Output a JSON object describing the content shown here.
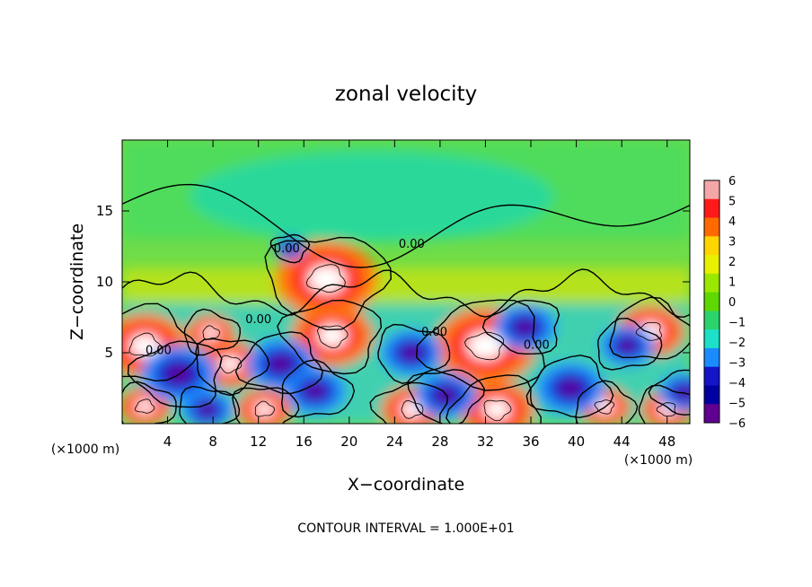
{
  "chart_data": {
    "type": "heatmap",
    "title": "zonal velocity",
    "xlabel": "X−coordinate",
    "ylabel": "Z−coordinate",
    "x_unit_left": "(×1000 m)",
    "x_unit_right": "(×1000 m)",
    "footer": "CONTOUR INTERVAL = 1.000E+01",
    "xlim": [
      0,
      50
    ],
    "ylim": [
      0,
      20
    ],
    "x_ticks": [
      4,
      8,
      12,
      16,
      20,
      24,
      28,
      32,
      36,
      40,
      44,
      48
    ],
    "y_ticks": [
      5,
      10,
      15
    ],
    "colorbar": {
      "min": -6,
      "max": 6,
      "ticks": [
        6,
        5,
        4,
        3,
        2,
        1,
        0,
        -1,
        -2,
        -3,
        -4,
        -5,
        -6
      ],
      "colors": [
        "#f4a7a7",
        "#ff1a1a",
        "#ff6a00",
        "#ffd500",
        "#e8f000",
        "#9ae800",
        "#5fd800",
        "#2bd46a",
        "#1ce0c8",
        "#1a8cff",
        "#1414c8",
        "#0000a0",
        "#600090"
      ]
    },
    "contour_labels": [
      {
        "text": "0.00",
        "x": 14.5,
        "z": 12.1
      },
      {
        "text": "0.00",
        "x": 25.5,
        "z": 12.4
      },
      {
        "text": "0.00",
        "x": 12.0,
        "z": 7.1
      },
      {
        "text": "0.00",
        "x": 3.2,
        "z": 4.9
      },
      {
        "text": "0.00",
        "x": 27.5,
        "z": 6.2
      },
      {
        "text": "0.00",
        "x": 36.5,
        "z": 5.3
      }
    ],
    "features": [
      {
        "kind": "max",
        "x": 2.0,
        "z": 5.5,
        "r": 2.5
      },
      {
        "kind": "max",
        "x": 7.8,
        "z": 6.4,
        "r": 1.4
      },
      {
        "kind": "max",
        "x": 9.5,
        "z": 4.2,
        "r": 1.8
      },
      {
        "kind": "max",
        "x": 18.5,
        "z": 6.2,
        "r": 2.4
      },
      {
        "kind": "max",
        "x": 32.0,
        "z": 5.5,
        "r": 3.0
      },
      {
        "kind": "max",
        "x": 46.5,
        "z": 6.5,
        "r": 2.0
      },
      {
        "kind": "max",
        "x": 2.0,
        "z": 1.2,
        "r": 1.5
      },
      {
        "kind": "max",
        "x": 12.5,
        "z": 1.0,
        "r": 1.6
      },
      {
        "kind": "max",
        "x": 25.5,
        "z": 1.0,
        "r": 1.8
      },
      {
        "kind": "max",
        "x": 33.0,
        "z": 1.0,
        "r": 2.2
      },
      {
        "kind": "max",
        "x": 42.5,
        "z": 1.2,
        "r": 1.5
      },
      {
        "kind": "max",
        "x": 48.0,
        "z": 1.0,
        "r": 1.5
      },
      {
        "kind": "max",
        "x": 18.0,
        "z": 10.2,
        "r": 3.0
      },
      {
        "kind": "min",
        "x": 5.0,
        "z": 3.5,
        "r": 2.2
      },
      {
        "kind": "min",
        "x": 14.0,
        "z": 4.2,
        "r": 2.0
      },
      {
        "kind": "min",
        "x": 17.0,
        "z": 2.3,
        "r": 1.8
      },
      {
        "kind": "min",
        "x": 25.5,
        "z": 5.0,
        "r": 1.8
      },
      {
        "kind": "min",
        "x": 28.5,
        "z": 2.0,
        "r": 1.8
      },
      {
        "kind": "min",
        "x": 35.5,
        "z": 6.8,
        "r": 1.8
      },
      {
        "kind": "min",
        "x": 39.5,
        "z": 2.5,
        "r": 2.0
      },
      {
        "kind": "min",
        "x": 44.5,
        "z": 5.5,
        "r": 1.6
      },
      {
        "kind": "min",
        "x": 7.5,
        "z": 1.0,
        "r": 1.5
      },
      {
        "kind": "min",
        "x": 14.8,
        "z": 12.4,
        "r": 0.9
      },
      {
        "kind": "min",
        "x": 49.5,
        "z": 2.2,
        "r": 1.5
      }
    ]
  }
}
